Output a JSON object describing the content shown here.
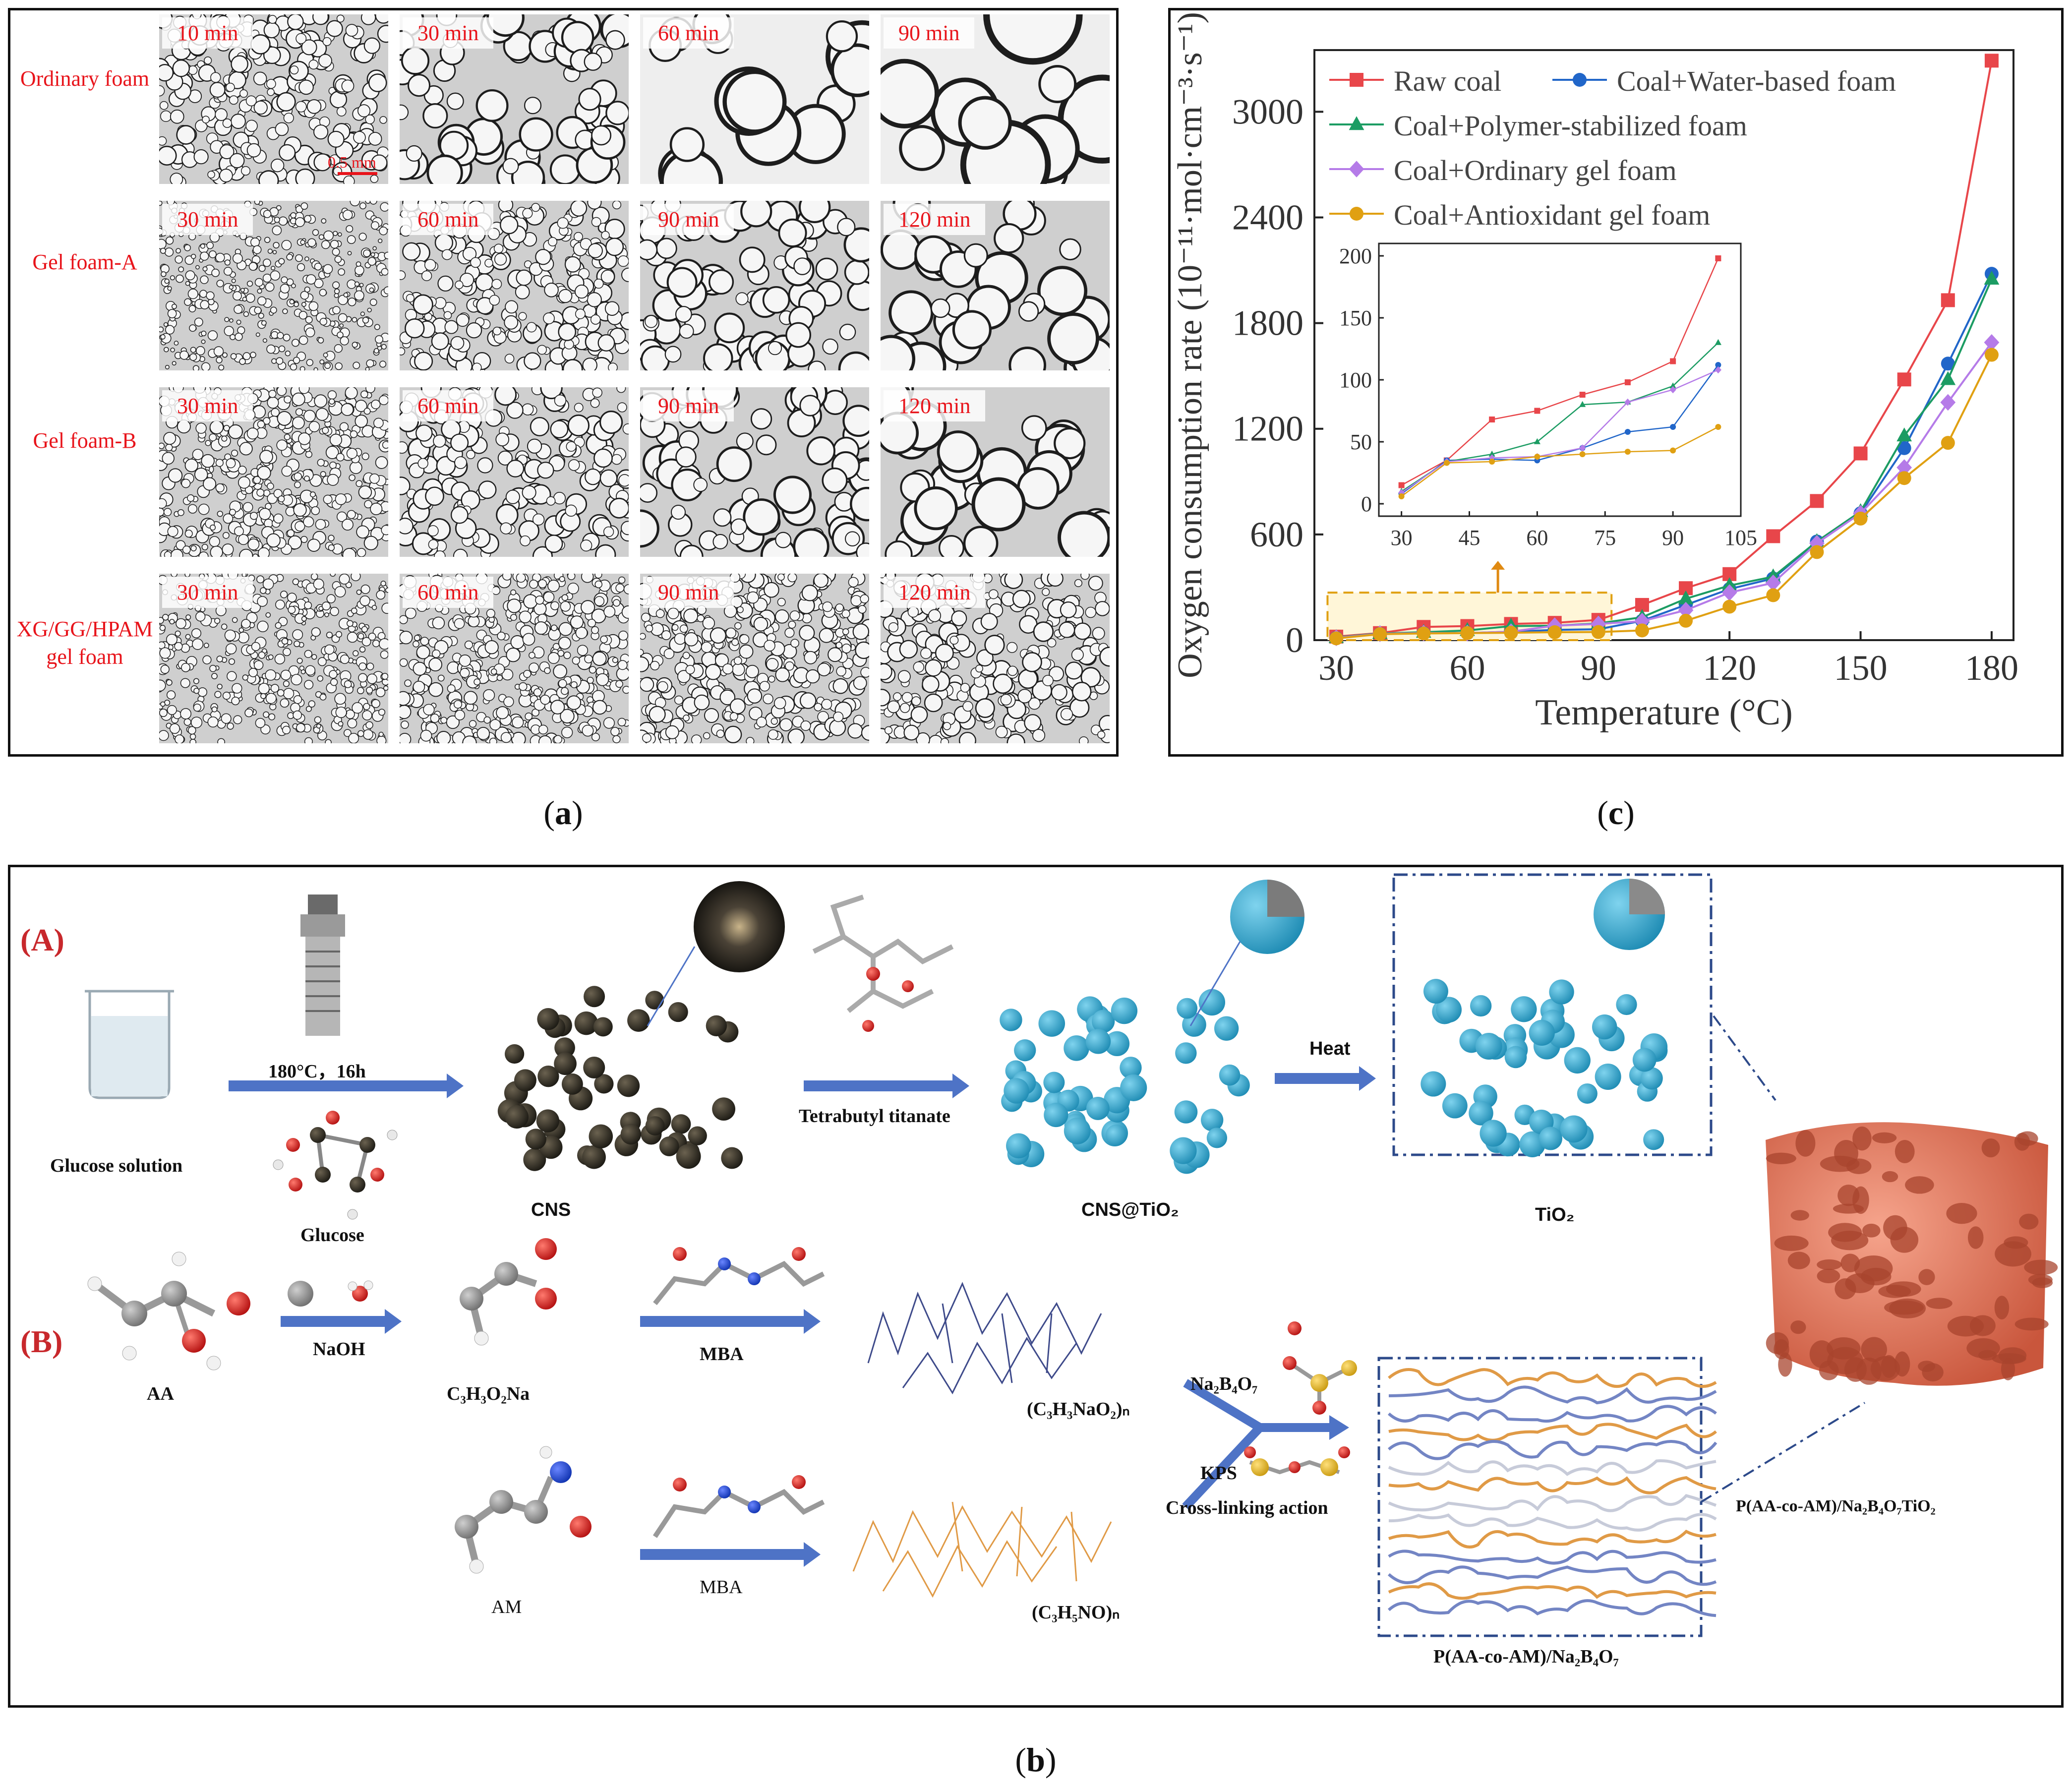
{
  "captions": {
    "a": "a",
    "b": "b",
    "c": "c"
  },
  "panel_a": {
    "rows": [
      {
        "label": "Ordinary foam",
        "times": [
          "10 min",
          "30 min",
          "60 min",
          "90 min"
        ]
      },
      {
        "label": "Gel foam-A",
        "times": [
          "30 min",
          "60 min",
          "90 min",
          "120 min"
        ]
      },
      {
        "label": "Gel foam-B",
        "times": [
          "30 min",
          "60 min",
          "90 min",
          "120 min"
        ]
      },
      {
        "label": "XG/GG/HPAM gel foam",
        "times": [
          "30 min",
          "60 min",
          "90 min",
          "120 min"
        ]
      }
    ],
    "scale_bar": "0.5 mm"
  },
  "panel_b": {
    "section_a": "(A)",
    "section_b": "(B)",
    "labels": {
      "glucose_solution": "Glucose solution",
      "glucose": "Glucose",
      "condition": "180°C，16h",
      "cns": "CNS",
      "tetrabutyl": "Tetrabutyl titanate",
      "cns_tio2": "CNS@TiO₂",
      "heat": "Heat",
      "tio2": "TiO₂",
      "aa": "AA",
      "naoh": "NaOH",
      "sodium_acrylate": "C₃H₃O₂Na",
      "mba_1": "MBA",
      "poly_1": "(C₃H₃NaO₂)ₙ",
      "am": "AM",
      "mba_2": "MBA",
      "poly_2": "(C₃H₅NO)ₙ",
      "borax": "Na₂B₄O₇",
      "kps": "KPS",
      "crosslinking": "Cross-linking action",
      "gel": "P(AA-co-AM)/Na₂B₄O₇",
      "composite": "P(AA-co-AM)/Na₂B₄O₇TiO₂"
    }
  },
  "chart_data": {
    "type": "line",
    "title": "",
    "xlabel": "Temperature (°C)",
    "ylabel": "Oxygen consumption rate (10⁻¹¹·mol·cm⁻³·s⁻¹)",
    "xlim": [
      25,
      185
    ],
    "ylim": [
      0,
      3350
    ],
    "xticks": [
      30,
      60,
      90,
      120,
      150,
      180
    ],
    "yticks": [
      0,
      600,
      1200,
      1800,
      2400,
      3000
    ],
    "legend_position": "top-left",
    "x": [
      30,
      40,
      50,
      60,
      70,
      80,
      90,
      100,
      110,
      120,
      130,
      140,
      150,
      160,
      170,
      180
    ],
    "series": [
      {
        "name": "Raw coal",
        "color": "#e8464a",
        "marker": "square",
        "values": [
          20,
          40,
          75,
          80,
          92,
          98,
          115,
          200,
          295,
          375,
          590,
          790,
          1060,
          1480,
          1930,
          3290
        ]
      },
      {
        "name": "Coal+Water-based foam",
        "color": "#2166c9",
        "marker": "circle",
        "values": [
          12,
          35,
          40,
          40,
          48,
          58,
          62,
          110,
          200,
          290,
          350,
          560,
          720,
          1090,
          1570,
          2080
        ]
      },
      {
        "name": "Coal+Polymer-stabilized foam",
        "color": "#1c9c63",
        "marker": "triangle",
        "values": [
          15,
          38,
          45,
          55,
          80,
          82,
          95,
          130,
          235,
          310,
          360,
          560,
          730,
          1160,
          1480,
          2050
        ]
      },
      {
        "name": "Coal+Ordinary gel foam",
        "color": "#b57be8",
        "marker": "diamond",
        "values": [
          13,
          36,
          40,
          40,
          48,
          82,
          92,
          108,
          170,
          270,
          325,
          550,
          720,
          980,
          1350,
          1690
        ]
      },
      {
        "name": "Coal+Antioxidant gel foam",
        "color": "#e0a012",
        "marker": "circle",
        "values": [
          10,
          34,
          38,
          40,
          42,
          45,
          46,
          55,
          110,
          190,
          255,
          500,
          690,
          920,
          1120,
          1620
        ]
      }
    ],
    "inset": {
      "xlim": [
        25,
        105
      ],
      "ylim": [
        -10,
        210
      ],
      "xticks": [
        30,
        45,
        60,
        75,
        90,
        105
      ],
      "yticks": [
        0,
        50,
        100,
        150,
        200
      ],
      "x": [
        30,
        40,
        50,
        60,
        70,
        80,
        90,
        100
      ],
      "series": [
        {
          "name": "Raw coal",
          "values": [
            15,
            35,
            68,
            75,
            88,
            98,
            115,
            198
          ]
        },
        {
          "name": "Coal+Water-based foam",
          "values": [
            8,
            35,
            36,
            35,
            45,
            58,
            62,
            112
          ]
        },
        {
          "name": "Coal+Polymer-stabilized foam",
          "values": [
            10,
            34,
            40,
            50,
            80,
            82,
            95,
            130
          ]
        },
        {
          "name": "Coal+Ordinary gel foam",
          "values": [
            9,
            34,
            37,
            38,
            45,
            82,
            92,
            108
          ]
        },
        {
          "name": "Coal+Antioxidant gel foam",
          "values": [
            6,
            33,
            34,
            38,
            40,
            42,
            43,
            62
          ]
        }
      ]
    }
  }
}
